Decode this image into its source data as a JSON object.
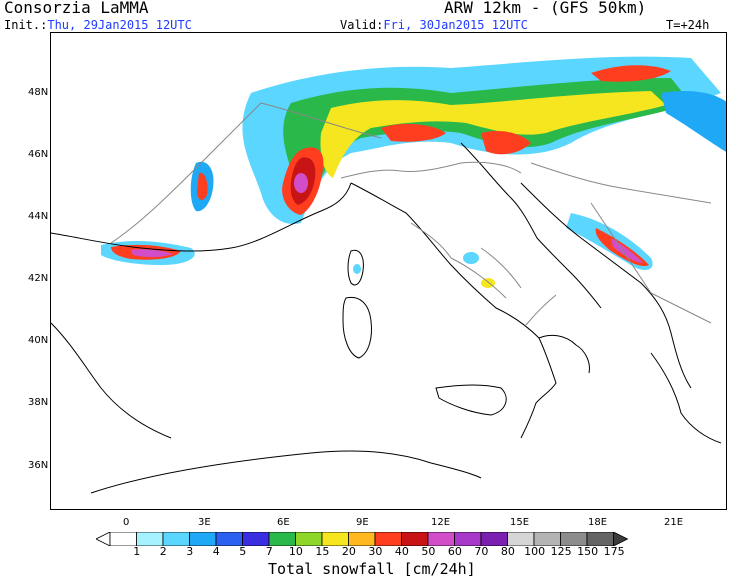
{
  "header": {
    "org": "Consorzia LaMMA",
    "model": "ARW 12km - (GFS 50km)",
    "init_label": "Init.:",
    "init_value": "Thu, 29Jan2015 12UTC",
    "valid_label": "Valid:",
    "valid_value": "Fri, 30Jan2015 12UTC",
    "lead": "T=+24h"
  },
  "map": {
    "lat_labels": [
      "48N",
      "46N",
      "44N",
      "42N",
      "40N",
      "38N",
      "36N"
    ],
    "lon_labels": [
      "0",
      "3E",
      "6E",
      "9E",
      "12E",
      "15E",
      "18E",
      "21E"
    ]
  },
  "legend": {
    "title": "Total snowfall [cm/24h]",
    "values": [
      "1",
      "2",
      "3",
      "4",
      "5",
      "7",
      "10",
      "15",
      "20",
      "30",
      "40",
      "50",
      "60",
      "70",
      "80",
      "100",
      "125",
      "150",
      "175"
    ],
    "colors": [
      "#a6f2ff",
      "#5ad6ff",
      "#1fa8f5",
      "#2b60f0",
      "#3a2fe0",
      "#2ab84a",
      "#8fd62b",
      "#f5e61f",
      "#ffb81f",
      "#ff3d1f",
      "#c81414",
      "#d24ec8",
      "#a637c8",
      "#7a1fb0",
      "#d6d6d6",
      "#b4b4b4",
      "#8c8c8c",
      "#646464",
      "#3c3c3c"
    ]
  }
}
